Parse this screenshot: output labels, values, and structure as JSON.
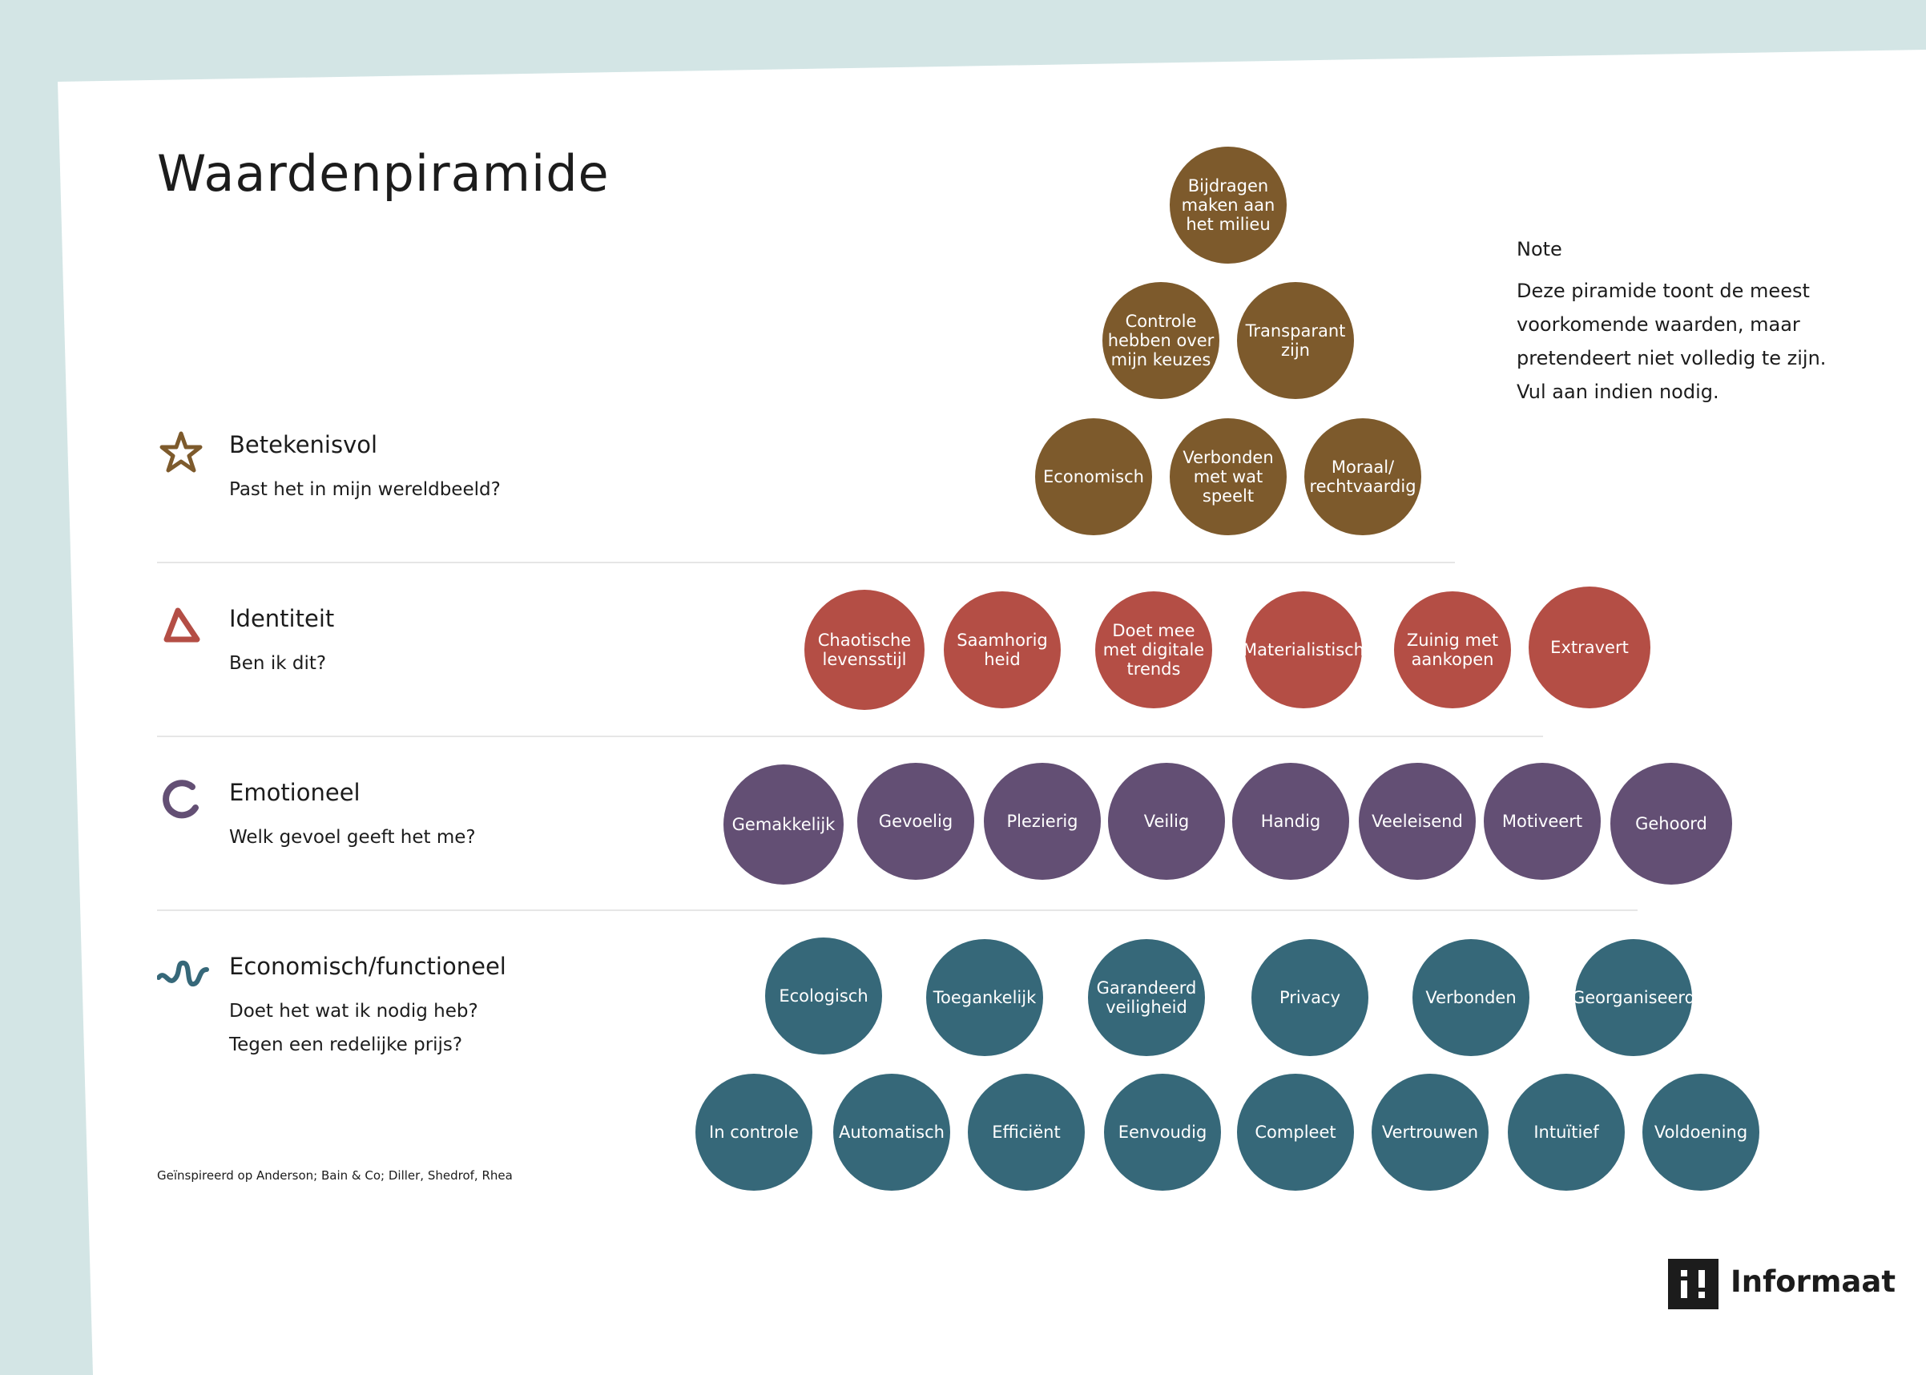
{
  "title": "Waardenpiramide",
  "note": {
    "heading": "Note",
    "lines": [
      "Deze piramide toont de meest",
      "voorkomende waarden, maar",
      "pretendeert niet volledig te zijn.",
      "Vul aan indien nodig."
    ]
  },
  "categories": [
    {
      "name": "Betekenisvol",
      "questions": [
        "Past het in mijn wereldbeeld?"
      ],
      "icon": "star-icon",
      "color": "#7d5a2c"
    },
    {
      "name": "Identiteit",
      "questions": [
        "Ben ik dit?"
      ],
      "icon": "triangle-icon",
      "color": "#b44e45"
    },
    {
      "name": "Emotioneel",
      "questions": [
        "Welk gevoel geeft het me?"
      ],
      "icon": "circle-icon",
      "color": "#634f74"
    },
    {
      "name": "Economisch/functioneel",
      "questions": [
        "Doet het wat ik nodig heb?",
        "Tegen een redelijke prijs?"
      ],
      "icon": "wave-icon",
      "color": "#366879"
    }
  ],
  "values": {
    "betekenisvol": [
      "Bijdragen maken aan het milieu",
      "Controle hebben over mijn keuzes",
      "Transparant zijn",
      "Economisch",
      "Verbonden met wat speelt",
      "Moraal/ rechtvaardig"
    ],
    "identiteit": [
      "Chaotische levensstijl",
      "Saamhorig heid",
      "Doet mee met digitale trends",
      "Materialistisch",
      "Zuinig met aankopen",
      "Extravert"
    ],
    "emotioneel": [
      "Gemakkelijk",
      "Gevoelig",
      "Plezierig",
      "Veilig",
      "Handig",
      "Veeleisend",
      "Motiveert",
      "Gehoord"
    ],
    "functioneel": [
      "Ecologisch",
      "Toegankelijk",
      "Garandeerd veiligheid",
      "Privacy",
      "Verbonden",
      "Georganiseerd",
      "In controle",
      "Automatisch",
      "Efficiënt",
      "Eenvoudig",
      "Compleet",
      "Vertrouwen",
      "Intuïtief",
      "Voldoening"
    ]
  },
  "credit": "Geïnspireerd op Anderson; Bain & Co; Diller, Shedrof, Rhea",
  "logo": {
    "text": "Informaat",
    "icon": "informaat-logo-icon"
  }
}
